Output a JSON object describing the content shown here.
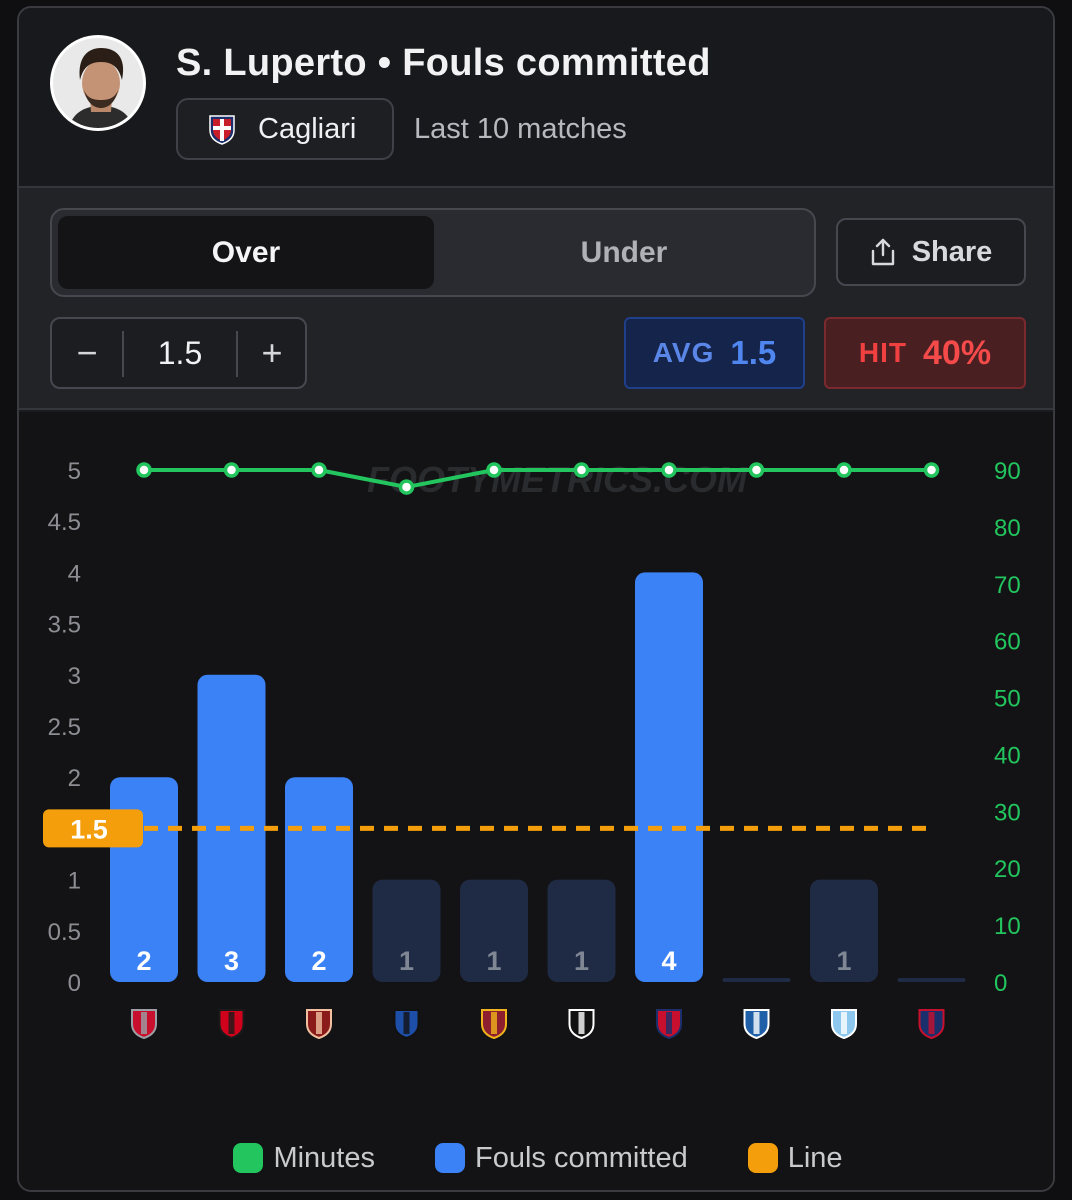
{
  "header": {
    "player_name": "S. Luperto",
    "separator": "•",
    "stat_name": "Fouls committed",
    "team": "Cagliari",
    "subtitle": "Last 10 matches"
  },
  "controls": {
    "toggle_over": "Over",
    "toggle_under": "Under",
    "share_label": "Share",
    "stepper_minus": "−",
    "stepper_plus": "+",
    "line_value": "1.5",
    "avg_label": "AVG",
    "avg_value": "1.5",
    "hit_label": "HIT",
    "hit_value": "40%"
  },
  "colors": {
    "bar_hit": "#3b82f6",
    "bar_miss": "#1f2a44",
    "minutes_line": "#22c55e",
    "line_marker": "#f59e0b"
  },
  "chart_data": {
    "type": "bar",
    "watermark": "FOOTYMETRICS.COM",
    "categories": [
      "Cremonese",
      "Milan",
      "Torino",
      "Atalanta",
      "Roma",
      "Juventus",
      "Genoa",
      "Como",
      "Lazio",
      "Bologna"
    ],
    "series": [
      {
        "name": "Fouls committed",
        "axis": "left",
        "values": [
          2,
          3,
          2,
          1,
          1,
          1,
          4,
          0,
          1,
          0
        ]
      },
      {
        "name": "Minutes",
        "axis": "right",
        "type": "line",
        "values": [
          90,
          90,
          90,
          87,
          90,
          90,
          90,
          90,
          90,
          90
        ]
      }
    ],
    "line": 1.5,
    "line_label": "1.5",
    "y_left": {
      "min": 0,
      "max": 5,
      "ticks": [
        "0",
        "0.5",
        "1",
        "1.5",
        "2",
        "2.5",
        "3",
        "3.5",
        "4",
        "4.5",
        "5"
      ]
    },
    "y_right": {
      "min": 0,
      "max": 90,
      "ticks": [
        "0",
        "10",
        "20",
        "30",
        "40",
        "50",
        "60",
        "70",
        "80",
        "90"
      ]
    },
    "legend": [
      "Minutes",
      "Fouls committed",
      "Line"
    ]
  }
}
